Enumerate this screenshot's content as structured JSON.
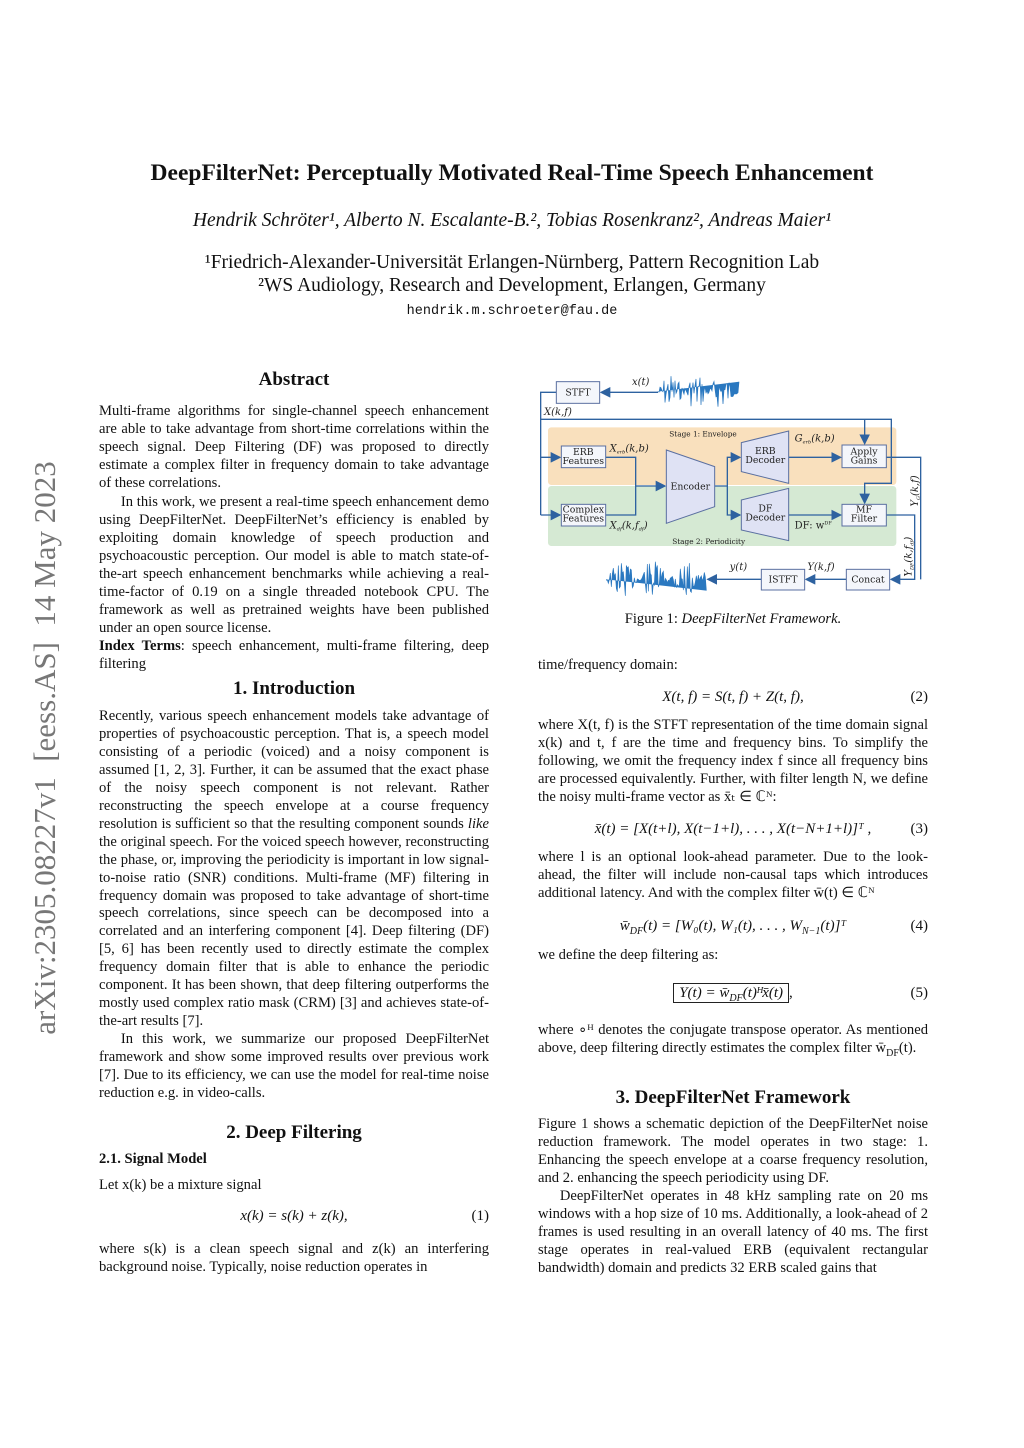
{
  "header": {
    "title": "DeepFilterNet: Perceptually Motivated Real-Time Speech Enhancement",
    "authors": "Hendrik Schröter¹, Alberto N. Escalante-B.², Tobias Rosenkranz², Andreas Maier¹",
    "affiliation_1": "¹Friedrich-Alexander-Universität Erlangen-Nürnberg, Pattern Recognition Lab",
    "affiliation_2": "²WS Audiology, Research and Development, Erlangen, Germany",
    "email": "hendrik.m.schroeter@fau.de"
  },
  "sidebar": {
    "arxiv_id": "arXiv:2305.08227v1  [eess.AS]  14 May 2023"
  },
  "abstract": {
    "heading": "Abstract",
    "p1": "Multi-frame algorithms for single-channel speech enhancement are able to take advantage from short-time correlations within the speech signal. Deep Filtering (DF) was proposed to directly estimate a complex filter in frequency domain to take advantage of these correlations.",
    "p2": "In this work, we present a real-time speech enhancement demo using DeepFilterNet. DeepFilterNet’s efficiency is enabled by exploiting domain knowledge of speech production and psychoacoustic perception. Our model is able to match state-of-the-art speech enhancement benchmarks while achieving a real-time-factor of 0.19 on a single threaded notebook CPU. The framework as well as pretrained weights have been published under an open source license.",
    "index_terms_label": "Index Terms",
    "index_terms": ": speech enhancement, multi-frame filtering, deep filtering"
  },
  "intro": {
    "heading": "1.  Introduction",
    "p1_a": "Recently, various speech enhancement models take advantage of properties of psychoacoustic perception. That is, a speech model consisting of a periodic (voiced) and a noisy component is assumed [1, 2, 3]. Further, it can be assumed that the exact phase of the noisy speech component is not relevant. Rather reconstructing the speech envelope at a course frequency resolution is sufficient so that the resulting component sounds ",
    "p1_italic": "like",
    "p1_b": " the original speech. For the voiced speech however, reconstructing the phase, or, improving the periodicity is important in low signal-to-noise ratio (SNR) conditions. Multi-frame (MF) filtering in frequency domain was proposed to take advantage of short-time speech correlations, since speech can be decomposed into a correlated and an interfering component [4]. Deep filtering (DF) [5, 6] has been recently used to directly estimate the complex frequency domain filter that is able to enhance the periodic component. It has been shown, that deep filtering outperforms the mostly used complex ratio mask (CRM) [3] and achieves state-of-the-art results [7].",
    "p2": "In this work, we summarize our proposed DeepFilterNet framework and show some improved results over previous work [7]. Due to its efficiency, we can use the model for real-time noise reduction e.g. in video-calls."
  },
  "deep_filtering": {
    "heading": "2.  Deep Filtering",
    "subheading": "2.1.  Signal Model",
    "p_mixture": "Let x(k) be a mixture signal",
    "eq1": "x(k) = s(k) + z(k),",
    "eq1_num": "(1)",
    "p_where_1": "where s(k) is a clean speech signal and z(k) an interfering background noise. Typically, noise reduction operates in",
    "p_tf": "time/frequency domain:",
    "eq2": "X(t, f) = S(t, f) + Z(t, f),",
    "eq2_num": "(2)",
    "p_stft": "where X(t, f) is the STFT representation of the time domain signal x(k) and t, f are the time and frequency bins. To simplify the following, we omit the frequency index f since all frequency bins are processed equivalently. Further, with filter length N, we define the noisy multi-frame vector as x̄ₜ ∈ ℂᴺ:",
    "eq3": "x̄(t) = [X(t+l), X(t−1+l), . . . , X(t−N+1+l)]ᵀ ,",
    "eq3_num": "(3)",
    "p_lookahead": "where l is an optional look-ahead parameter. Due to the look-ahead, the filter will include non-causal taps which introduces additional latency. And with the complex filter w̄(t) ∈ ℂᴺ",
    "eq4_a": "w̄",
    "eq4_sub": "DF",
    "eq4_b": "(t) = [W₀(t), W₁(t), . . . , W",
    "eq4_sub2": "N−1",
    "eq4_c": "(t)]ᵀ",
    "eq4_num": "(4)",
    "p_define": "we define the deep filtering as:",
    "eq5_a": "Y(t) = w̄",
    "eq5_sub": "DF",
    "eq5_b": "(t)ᴴx̄(t)",
    "eq5_tail": ",",
    "eq5_num": "(5)",
    "p_conj": "where ∘ᴴ denotes the conjugate transpose operator. As mentioned above, deep filtering directly estimates the complex filter w̄",
    "p_conj_sub": "DF",
    "p_conj_end": "(t)."
  },
  "framework": {
    "heading": "3.  DeepFilterNet Framework",
    "p1": "Figure 1 shows a schematic depiction of the DeepFilterNet noise reduction framework. The model operates in two stage: 1. Enhancing the speech envelope at a coarse frequency resolution, and 2. enhancing the speech periodicity using DF.",
    "p2": "DeepFilterNet operates in 48 kHz sampling rate on 20 ms windows with a hop size of 10 ms. Additionally, a look-ahead of 2 frames is used resulting in an overall latency of 40 ms. The first stage operates in real-valued ERB (equivalent rectangular bandwidth) domain and predicts 32 ERB scaled gains that"
  },
  "figure": {
    "caption_label": "Figure 1: ",
    "caption_text": "DeepFilterNet Framework.",
    "stft": "STFT",
    "istft": "ISTFT",
    "concat": "Concat",
    "encoder": "Encoder",
    "erb_features_1": "ERB",
    "erb_features_2": "Features",
    "complex_features_1": "Complex",
    "complex_features_2": "Features",
    "erb_decoder_1": "ERB",
    "erb_decoder_2": "Decoder",
    "df_decoder_1": "DF",
    "df_decoder_2": "Decoder",
    "apply_gains_1": "Apply",
    "apply_gains_2": "Gains",
    "mf_filter_1": "MF",
    "mf_filter_2": "Filter",
    "stage1": "Stage 1: Envelope",
    "stage2": "Stage 2: Periodicity",
    "x_t": "x(t)",
    "y_t": "y(t)",
    "X_kf": "X(k,f)",
    "Y_kf": "Y(k,f)",
    "X_erb": "X",
    "X_erb_sub": "erb",
    "X_erb_args": "(k,b)",
    "X_df": "X",
    "X_df_sub": "df",
    "X_df_args": "(k,f",
    "X_df_sub2": "df",
    "X_df_end": ")",
    "G_erb": "G",
    "G_erb_sub": "erb",
    "G_erb_args": "(k,b)",
    "DF_w": "DF: w",
    "DF_w_sup": "DF",
    "Y_G": "Y",
    "Y_G_sub": "G",
    "Y_G_args": "(k,f)",
    "Y_DF": "Y",
    "Y_DF_sub": "DF",
    "Y_DF_args": "(k,f",
    "Y_DF_sub2": "df",
    "Y_DF_end": ")",
    "colors": {
      "stage1_bg": "#f9e0bd",
      "stage2_bg": "#d5e9d3",
      "line": "#2e62a0",
      "block_fill": "#dfe2f4",
      "wave": "#2a78c0"
    }
  }
}
